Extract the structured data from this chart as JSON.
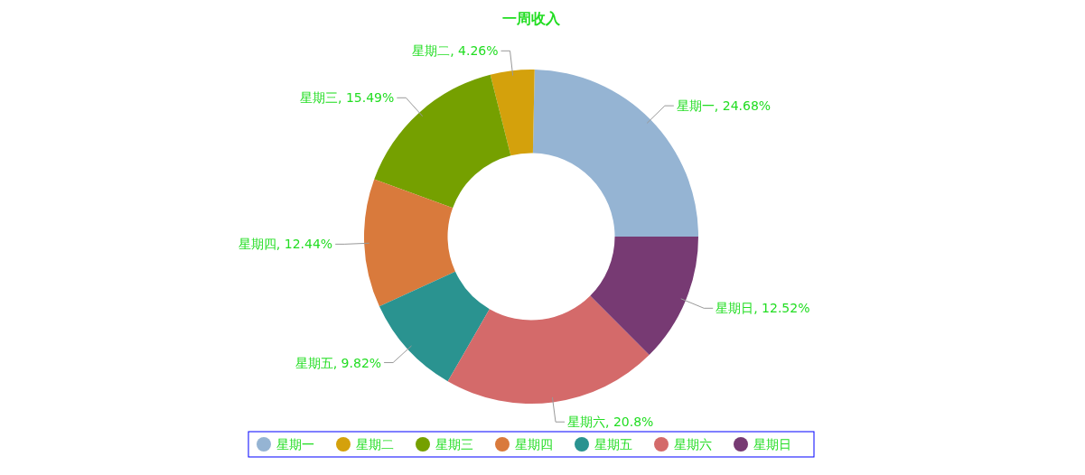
{
  "chart_data": {
    "type": "donut",
    "title": "一周收入",
    "categories": [
      "星期一",
      "星期二",
      "星期三",
      "星期四",
      "星期五",
      "星期六",
      "星期日"
    ],
    "values": [
      24.68,
      4.26,
      15.49,
      12.44,
      9.82,
      20.8,
      12.52
    ],
    "value_labels": [
      "星期一, 24.68%",
      "星期二, 4.26%",
      "星期三, 15.49%",
      "星期四, 12.44%",
      "星期五, 9.82%",
      "星期六, 20.8%",
      "星期日, 12.52%"
    ],
    "colors": [
      "#95b4d3",
      "#d4a10c",
      "#75a000",
      "#d97a3c",
      "#2a9390",
      "#d46a6a",
      "#773a73"
    ],
    "legend": "bottom"
  }
}
